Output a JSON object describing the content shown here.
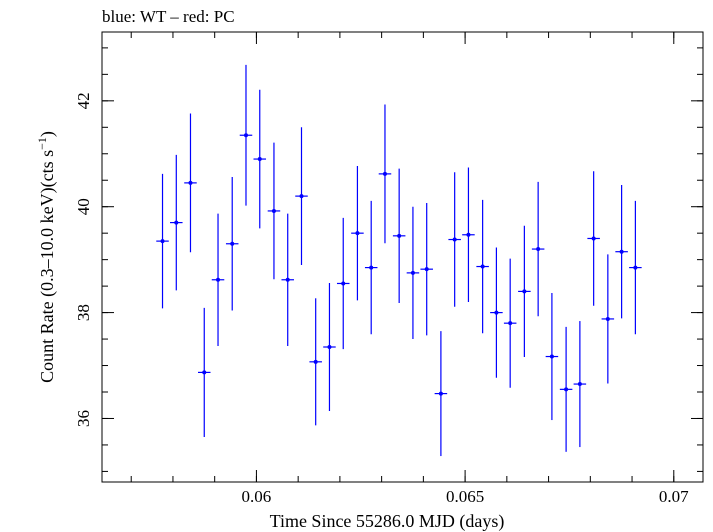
{
  "chart_data": {
    "type": "scatter",
    "title": "blue: WT – red: PC",
    "xlabel": "Time Since 55286.0 MJD (days)",
    "ylabel_main": "Count Rate (0.3–10.0 keV)(cts s",
    "ylabel_sup": "−1",
    "ylabel_close": ")",
    "xlim": [
      0.0563,
      0.0707
    ],
    "ylim": [
      34.8,
      43.3
    ],
    "x_ticks": [
      {
        "value": 0.06,
        "label": "0.06"
      },
      {
        "value": 0.065,
        "label": "0.065"
      },
      {
        "value": 0.07,
        "label": "0.07"
      }
    ],
    "x_minor_step": 0.001,
    "y_ticks": [
      {
        "value": 36,
        "label": "36"
      },
      {
        "value": 38,
        "label": "38"
      },
      {
        "value": 40,
        "label": "40"
      },
      {
        "value": 42,
        "label": "42"
      }
    ],
    "y_minor_step": 0.5,
    "series": [
      {
        "color": "#0000ff",
        "x_halfwidth": 0.00015,
        "points": [
          {
            "x": 0.05775,
            "y": 39.35,
            "yerr": 1.27
          },
          {
            "x": 0.05808,
            "y": 39.7,
            "yerr": 1.28
          },
          {
            "x": 0.05842,
            "y": 40.45,
            "yerr": 1.31
          },
          {
            "x": 0.05875,
            "y": 36.87,
            "yerr": 1.22
          },
          {
            "x": 0.05908,
            "y": 38.62,
            "yerr": 1.25
          },
          {
            "x": 0.05942,
            "y": 39.3,
            "yerr": 1.26
          },
          {
            "x": 0.05975,
            "y": 41.35,
            "yerr": 1.33
          },
          {
            "x": 0.06008,
            "y": 40.9,
            "yerr": 1.31
          },
          {
            "x": 0.06042,
            "y": 39.92,
            "yerr": 1.29
          },
          {
            "x": 0.06075,
            "y": 38.62,
            "yerr": 1.25
          },
          {
            "x": 0.06108,
            "y": 40.2,
            "yerr": 1.3
          },
          {
            "x": 0.06142,
            "y": 37.07,
            "yerr": 1.2
          },
          {
            "x": 0.06175,
            "y": 37.35,
            "yerr": 1.21
          },
          {
            "x": 0.06208,
            "y": 38.55,
            "yerr": 1.24
          },
          {
            "x": 0.06242,
            "y": 39.5,
            "yerr": 1.27
          },
          {
            "x": 0.06275,
            "y": 38.85,
            "yerr": 1.26
          },
          {
            "x": 0.06308,
            "y": 40.62,
            "yerr": 1.31
          },
          {
            "x": 0.06342,
            "y": 39.45,
            "yerr": 1.27
          },
          {
            "x": 0.06375,
            "y": 38.75,
            "yerr": 1.25
          },
          {
            "x": 0.06408,
            "y": 38.82,
            "yerr": 1.25
          },
          {
            "x": 0.06442,
            "y": 36.47,
            "yerr": 1.18
          },
          {
            "x": 0.06475,
            "y": 39.38,
            "yerr": 1.27
          },
          {
            "x": 0.06508,
            "y": 39.47,
            "yerr": 1.27
          },
          {
            "x": 0.06542,
            "y": 38.87,
            "yerr": 1.26
          },
          {
            "x": 0.06575,
            "y": 38.0,
            "yerr": 1.23
          },
          {
            "x": 0.06608,
            "y": 37.8,
            "yerr": 1.22
          },
          {
            "x": 0.06642,
            "y": 38.4,
            "yerr": 1.24
          },
          {
            "x": 0.06675,
            "y": 39.2,
            "yerr": 1.27
          },
          {
            "x": 0.06708,
            "y": 37.17,
            "yerr": 1.2
          },
          {
            "x": 0.06742,
            "y": 36.55,
            "yerr": 1.18
          },
          {
            "x": 0.06775,
            "y": 36.65,
            "yerr": 1.19
          },
          {
            "x": 0.06808,
            "y": 39.4,
            "yerr": 1.27
          },
          {
            "x": 0.06842,
            "y": 37.88,
            "yerr": 1.22
          },
          {
            "x": 0.06875,
            "y": 39.15,
            "yerr": 1.26
          },
          {
            "x": 0.06908,
            "y": 38.85,
            "yerr": 1.26
          }
        ]
      }
    ]
  }
}
